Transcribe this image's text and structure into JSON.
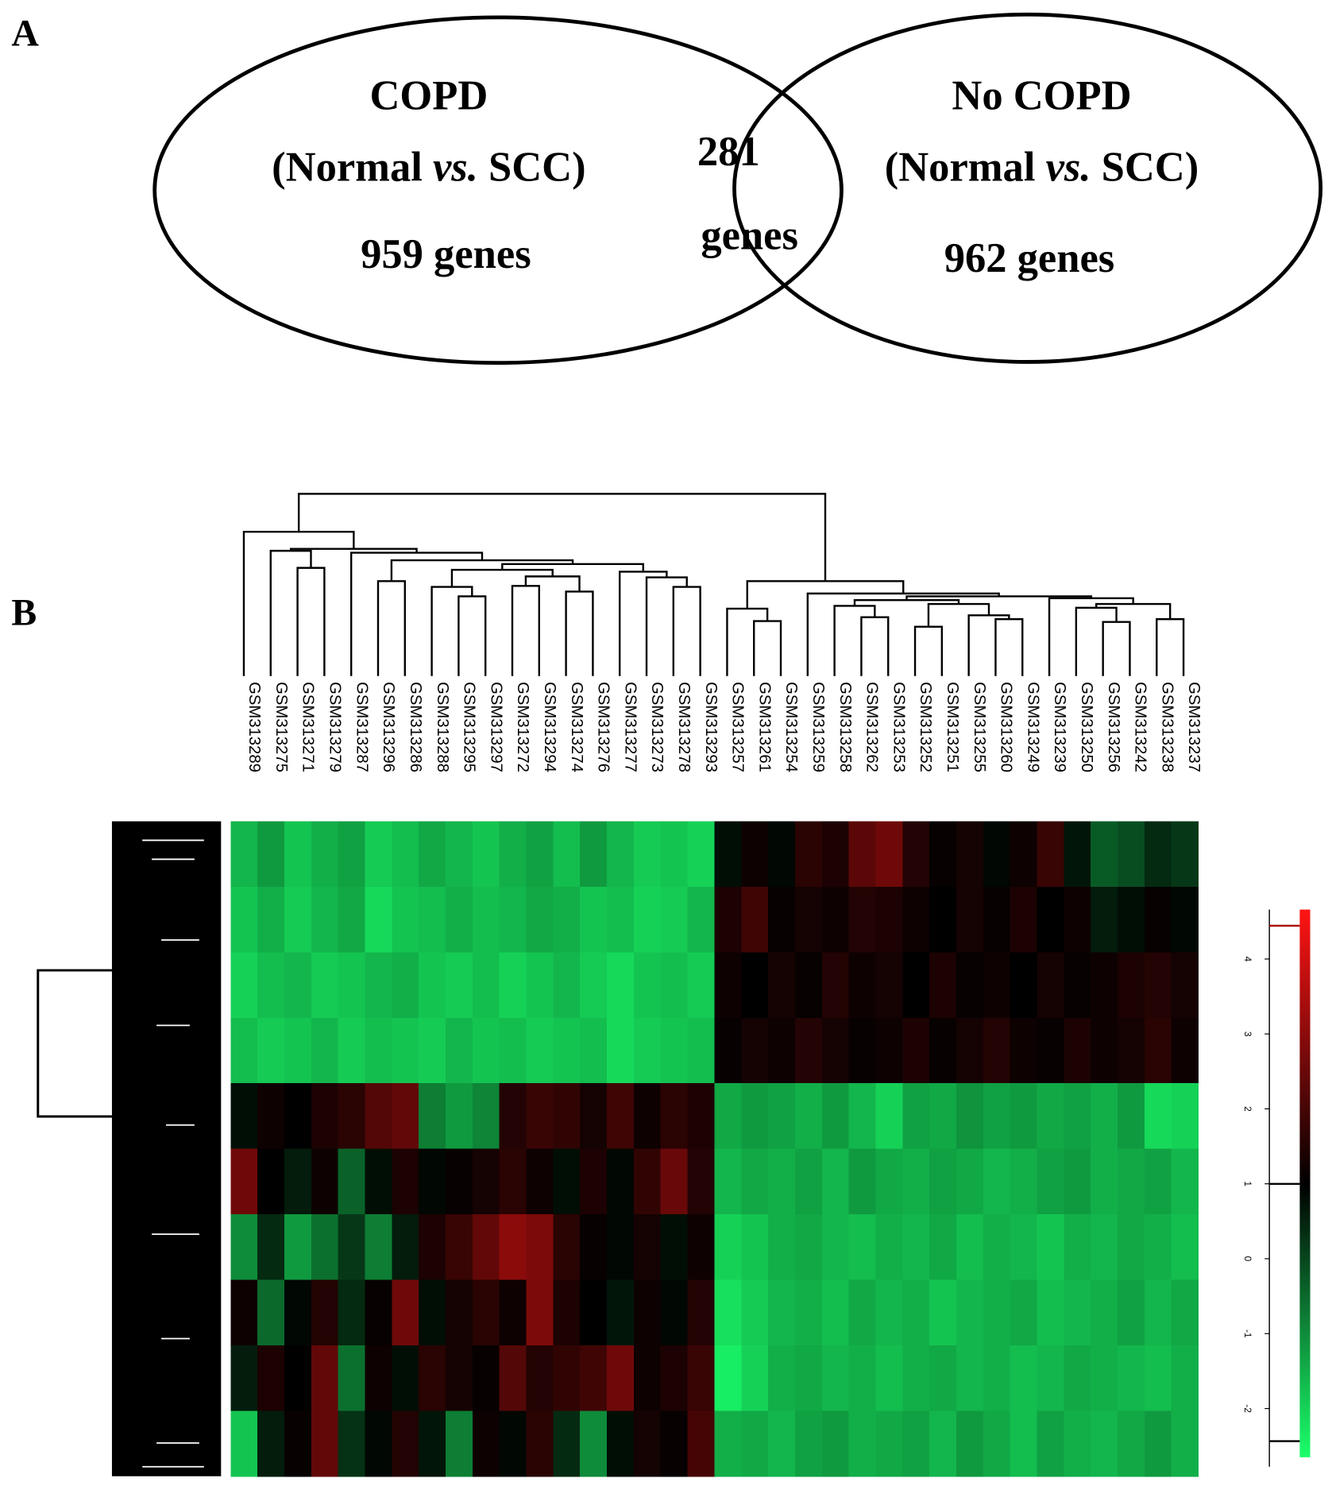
{
  "panel_labels": [
    "A",
    "B"
  ],
  "venn": {
    "left": {
      "title": "COPD",
      "comparison": {
        "before": "(Normal ",
        "italic": "vs.",
        "after": " SCC)"
      },
      "count_label": "959 genes"
    },
    "right": {
      "title": "No COPD",
      "comparison": {
        "before": "(Normal ",
        "italic": "vs.",
        "after": " SCC)"
      },
      "count_label": "962 genes"
    },
    "overlap": {
      "count": "281",
      "unit": "genes"
    }
  },
  "heatmap": {
    "samples": [
      "GSM313289",
      "GSM313275",
      "GSM313271",
      "GSM313279",
      "GSM313287",
      "GSM313296",
      "GSM313286",
      "GSM313288",
      "GSM313295",
      "GSM313297",
      "GSM313272",
      "GSM313294",
      "GSM313274",
      "GSM313276",
      "GSM313277",
      "GSM313273",
      "GSM313278",
      "GSM313293",
      "GSM313257",
      "GSM313261",
      "GSM313254",
      "GSM313259",
      "GSM313258",
      "GSM313262",
      "GSM313253",
      "GSM313252",
      "GSM313251",
      "GSM313255",
      "GSM313260",
      "GSM313249",
      "GSM313239",
      "GSM313250",
      "GSM313256",
      "GSM313242",
      "GSM313238",
      "GSM313237"
    ],
    "values": [
      [
        -1.6,
        -1.2,
        -1.8,
        -1.5,
        -1.3,
        -1.9,
        -1.7,
        -1.4,
        -1.6,
        -1.8,
        -1.5,
        -1.3,
        -1.7,
        -1.2,
        -1.6,
        -1.9,
        -1.8,
        -2.0,
        0.8,
        1.2,
        0.9,
        1.6,
        1.4,
        2.3,
        2.6,
        1.5,
        1.1,
        1.3,
        0.9,
        1.2,
        1.8,
        0.7,
        -0.3,
        -0.1,
        0.4,
        0.2
      ],
      [
        -1.8,
        -1.5,
        -1.9,
        -1.6,
        -1.4,
        -2.1,
        -1.8,
        -1.7,
        -1.5,
        -1.7,
        -1.6,
        -1.4,
        -1.5,
        -1.8,
        -1.7,
        -2.0,
        -1.9,
        -1.6,
        1.4,
        1.9,
        1.1,
        1.3,
        1.2,
        1.5,
        1.4,
        1.2,
        1.0,
        1.3,
        1.1,
        1.4,
        1.0,
        1.2,
        0.6,
        0.8,
        1.1,
        0.9
      ],
      [
        -2.0,
        -1.7,
        -1.6,
        -1.9,
        -1.8,
        -1.6,
        -1.5,
        -1.8,
        -1.9,
        -1.7,
        -2.0,
        -1.8,
        -1.6,
        -1.9,
        -2.1,
        -1.8,
        -1.7,
        -1.9,
        1.2,
        1.0,
        1.3,
        1.1,
        1.5,
        1.2,
        1.3,
        1.0,
        1.4,
        1.1,
        1.2,
        1.0,
        1.3,
        1.1,
        1.2,
        1.4,
        1.5,
        1.3
      ],
      [
        -1.7,
        -1.9,
        -1.8,
        -1.6,
        -1.9,
        -1.7,
        -1.8,
        -1.9,
        -1.6,
        -1.8,
        -1.7,
        -1.9,
        -1.8,
        -1.7,
        -2.1,
        -1.9,
        -1.8,
        -1.7,
        1.1,
        1.3,
        1.2,
        1.5,
        1.3,
        1.1,
        1.2,
        1.4,
        1.1,
        1.3,
        1.5,
        1.2,
        1.1,
        1.4,
        1.2,
        1.3,
        1.6,
        1.2
      ],
      [
        0.8,
        1.2,
        1.0,
        1.4,
        1.6,
        2.2,
        2.4,
        -0.8,
        -1.2,
        -0.9,
        1.5,
        1.8,
        1.7,
        1.3,
        1.9,
        1.2,
        1.6,
        1.4,
        -1.4,
        -1.2,
        -1.3,
        -1.5,
        -1.2,
        -1.6,
        -2.0,
        -1.3,
        -1.4,
        -1.1,
        -1.3,
        -1.2,
        -1.4,
        -1.3,
        -1.5,
        -1.2,
        -2.1,
        -2.0
      ],
      [
        2.6,
        1.0,
        0.6,
        1.2,
        -0.4,
        0.8,
        1.4,
        0.9,
        1.1,
        1.3,
        1.6,
        1.2,
        0.8,
        1.4,
        0.9,
        1.7,
        2.5,
        1.5,
        -1.6,
        -1.4,
        -1.5,
        -1.3,
        -1.6,
        -1.2,
        -1.4,
        -1.5,
        -1.3,
        -1.4,
        -1.6,
        -1.5,
        -1.3,
        -1.2,
        -1.5,
        -1.4,
        -1.3,
        -1.6
      ],
      [
        -1.0,
        0.4,
        -1.2,
        -0.6,
        0.2,
        -0.8,
        0.6,
        1.4,
        1.8,
        2.4,
        3.0,
        2.8,
        1.6,
        1.1,
        0.9,
        1.3,
        0.8,
        1.2,
        -2.0,
        -1.8,
        -1.5,
        -1.4,
        -1.6,
        -1.7,
        -1.5,
        -1.6,
        -1.4,
        -1.7,
        -1.5,
        -1.6,
        -1.8,
        -1.5,
        -1.6,
        -1.4,
        -1.5,
        -1.7
      ],
      [
        1.2,
        -0.5,
        0.9,
        1.5,
        0.4,
        1.1,
        2.6,
        0.8,
        1.3,
        1.6,
        1.2,
        2.8,
        1.4,
        1.0,
        0.7,
        1.2,
        0.9,
        1.5,
        -2.2,
        -1.9,
        -1.6,
        -1.5,
        -1.7,
        -1.4,
        -1.6,
        -1.5,
        -1.8,
        -1.6,
        -1.5,
        -1.4,
        -1.7,
        -1.6,
        -1.5,
        -1.3,
        -1.6,
        -1.4
      ],
      [
        0.6,
        1.4,
        1.0,
        2.4,
        -0.6,
        1.2,
        0.8,
        1.6,
        1.3,
        1.1,
        2.2,
        1.5,
        1.7,
        1.9,
        2.6,
        1.2,
        1.4,
        1.8,
        -2.4,
        -2.0,
        -1.5,
        -1.4,
        -1.6,
        -1.5,
        -1.7,
        -1.5,
        -1.4,
        -1.6,
        -1.5,
        -1.7,
        -1.6,
        -1.4,
        -1.5,
        -1.6,
        -1.7,
        -1.5
      ],
      [
        -1.8,
        0.6,
        1.1,
        2.4,
        0.3,
        0.9,
        1.5,
        0.7,
        -0.8,
        1.2,
        0.9,
        1.6,
        0.4,
        -1.0,
        0.8,
        1.3,
        1.1,
        2.0,
        -1.5,
        -1.4,
        -1.6,
        -1.3,
        -1.2,
        -1.5,
        -1.4,
        -1.3,
        -1.6,
        -1.2,
        -1.4,
        -1.7,
        -1.3,
        -1.5,
        -1.6,
        -1.4,
        -1.2,
        -1.5
      ]
    ],
    "zlim": [
      -2.65,
      4.66
    ],
    "center": 1,
    "colors": [
      "#1aff6a",
      "#000000",
      "#ff1414"
    ],
    "colorbar_ticks": [
      -2,
      -1,
      0,
      1,
      2,
      3,
      4
    ]
  }
}
